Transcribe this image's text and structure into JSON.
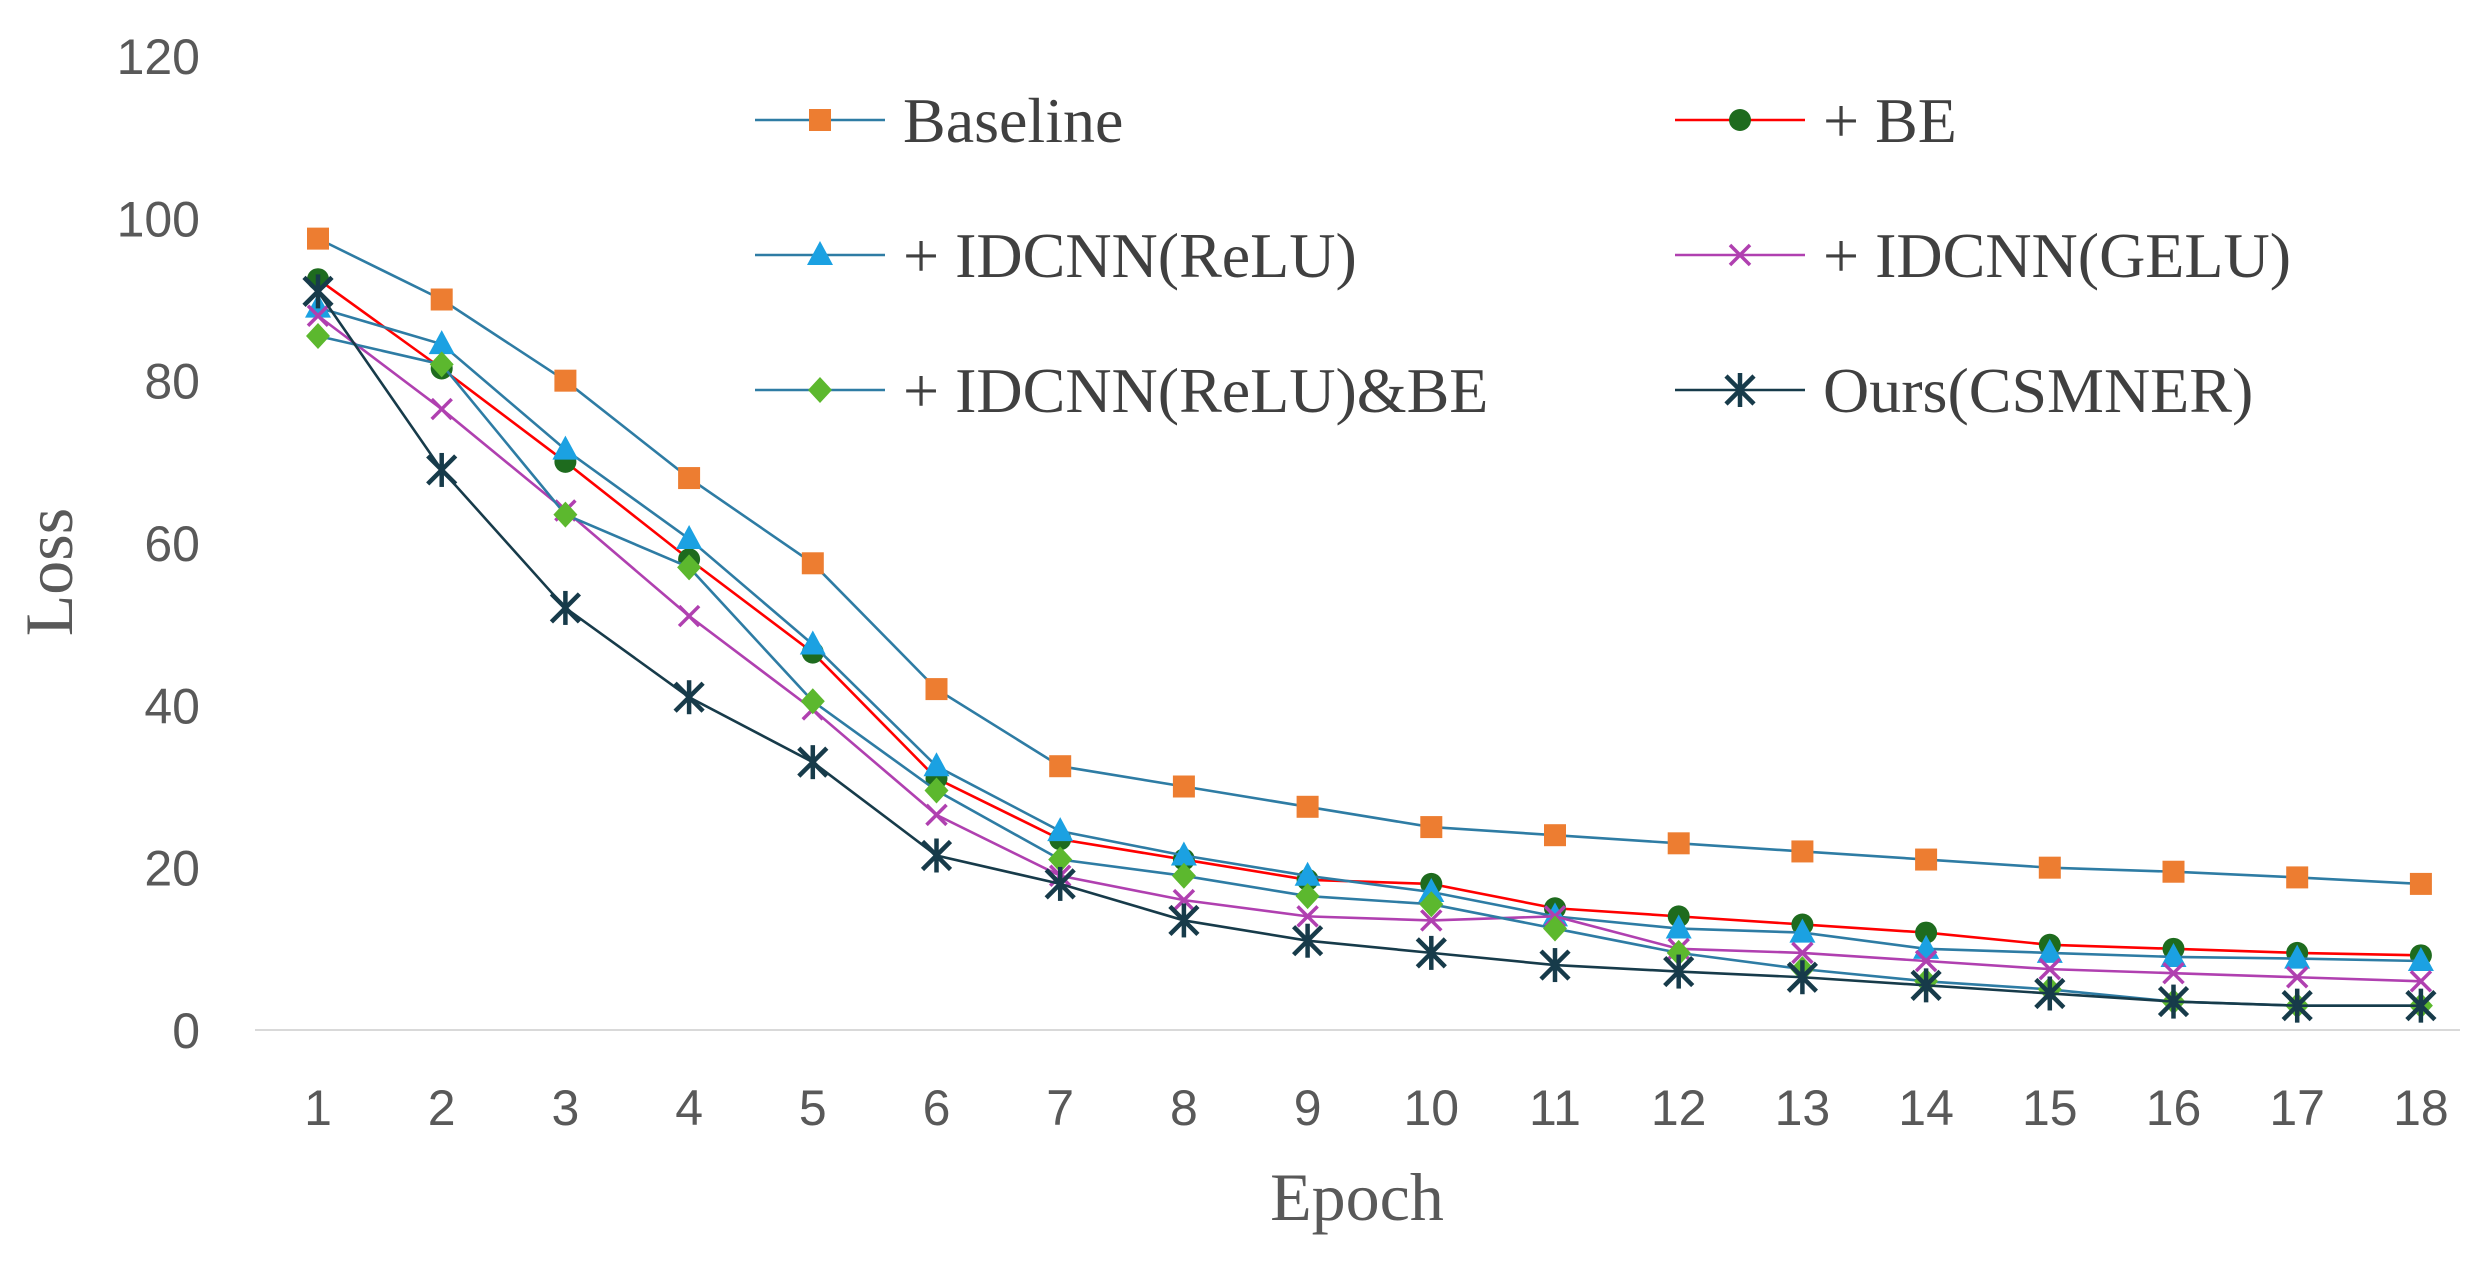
{
  "chart_data": {
    "type": "line",
    "title": "",
    "xlabel": "Epoch",
    "ylabel": "Loss",
    "ylim": [
      0,
      120
    ],
    "yticks": [
      0,
      20,
      40,
      60,
      80,
      100,
      120
    ],
    "x": [
      1,
      2,
      3,
      4,
      5,
      6,
      7,
      8,
      9,
      10,
      11,
      12,
      13,
      14,
      15,
      16,
      17,
      18
    ],
    "grid": false,
    "legend_position": "top",
    "series": [
      {
        "name": "Baseline",
        "line_color": "#2E7CA4",
        "marker": "square",
        "marker_color": "#ED7D31",
        "values": [
          97.5,
          90,
          80,
          68,
          57.5,
          42,
          32.5,
          30,
          27.5,
          25,
          24,
          23,
          22,
          21,
          20,
          19.5,
          18.8,
          18
        ]
      },
      {
        "name": "+ BE",
        "line_color": "#FF0000",
        "marker": "circle",
        "marker_color": "#1E6B1E",
        "values": [
          92.5,
          81.5,
          70,
          58,
          46.5,
          31,
          23.5,
          21,
          18.5,
          18,
          15,
          14,
          13,
          12,
          10.5,
          10,
          9.5,
          9.2
        ]
      },
      {
        "name": "+ IDCNN(ReLU)",
        "line_color": "#2E7CA4",
        "marker": "triangle",
        "marker_color": "#1BA1E2",
        "values": [
          89,
          84.5,
          71.5,
          60.5,
          47.5,
          32.5,
          24.5,
          21.5,
          19,
          17,
          14,
          12.5,
          12,
          10,
          9.5,
          9,
          8.8,
          8.5
        ]
      },
      {
        "name": "+ IDCNN(GELU)",
        "line_color": "#B040B0",
        "marker": "x",
        "marker_color": "#B040B0",
        "values": [
          88,
          76.5,
          64,
          51,
          39.5,
          26.5,
          19,
          16,
          14,
          13.5,
          14,
          10,
          9.5,
          8.5,
          7.5,
          7,
          6.5,
          6
        ]
      },
      {
        "name": "+ IDCNN(ReLU)&BE",
        "line_color": "#2E7CA4",
        "marker": "diamond",
        "marker_color": "#5CB82E",
        "values": [
          85.5,
          82,
          63.5,
          57,
          40.5,
          29.5,
          21,
          19,
          16.5,
          15.5,
          12.5,
          9.5,
          7.5,
          6,
          5,
          3.5,
          3,
          3
        ]
      },
      {
        "name": "Ours(CSMNER)",
        "line_color": "#173B4A",
        "marker": "asterisk",
        "marker_color": "#173B4A",
        "values": [
          91,
          69,
          52,
          41,
          33,
          21.5,
          18,
          13.5,
          11,
          9.5,
          8,
          7.2,
          6.5,
          5.5,
          4.5,
          3.5,
          3,
          3
        ]
      }
    ]
  }
}
